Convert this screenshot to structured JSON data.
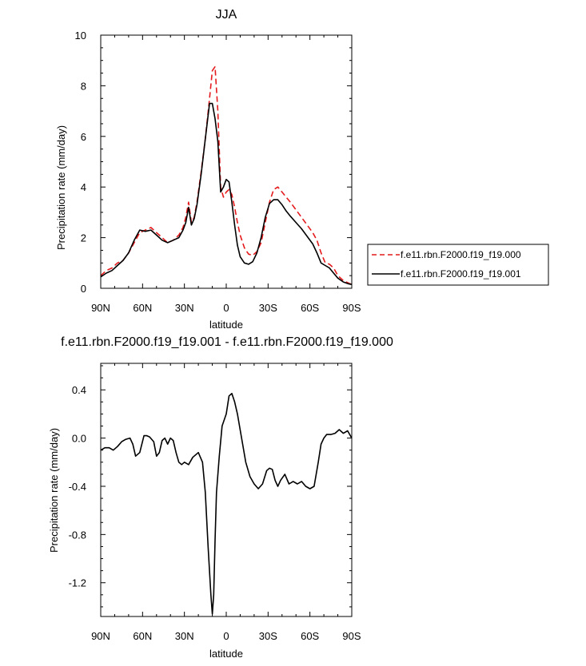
{
  "chart_data": [
    {
      "type": "line",
      "title": "JJA",
      "xlabel": "latitude",
      "ylabel": "Precipitation rate (mm/day)",
      "xlim": [
        90,
        -90
      ],
      "ylim": [
        0,
        10
      ],
      "xticks": [
        90,
        60,
        30,
        0,
        -30,
        -60,
        -90
      ],
      "xtick_labels": [
        "90N",
        "60N",
        "30N",
        "0",
        "30S",
        "60S",
        "90S"
      ],
      "yticks": [
        0,
        2,
        4,
        6,
        8,
        10
      ],
      "ytick_labels": [
        "0",
        "2",
        "4",
        "6",
        "8",
        "10"
      ],
      "legend_position": "right",
      "series": [
        {
          "name": "f.e11.rbn.F2000.f19_f19.000",
          "color": "#e41a1c",
          "style": "dashed",
          "x": [
            90,
            86,
            82,
            78,
            74,
            70,
            66,
            62,
            58,
            54,
            50,
            46,
            42,
            38,
            34,
            31,
            29,
            27,
            25,
            23,
            21,
            18,
            15,
            12,
            10,
            8,
            6,
            4,
            2,
            0,
            -2,
            -4,
            -6,
            -8,
            -10,
            -13,
            -16,
            -19,
            -22,
            -25,
            -28,
            -31,
            -34,
            -37,
            -40,
            -43,
            -46,
            -50,
            -54,
            -58,
            -62,
            -65,
            -68,
            -71,
            -74,
            -77,
            -80,
            -84,
            -88,
            -90
          ],
          "y": [
            0.5,
            0.7,
            0.8,
            1.0,
            1.1,
            1.4,
            1.8,
            2.2,
            2.3,
            2.4,
            2.2,
            2.0,
            1.8,
            1.9,
            2.1,
            2.4,
            2.8,
            3.4,
            2.6,
            2.8,
            3.4,
            4.6,
            5.9,
            7.5,
            8.6,
            8.75,
            7.0,
            4.0,
            3.6,
            3.8,
            3.9,
            3.7,
            3.2,
            2.6,
            2.1,
            1.6,
            1.35,
            1.3,
            1.45,
            1.8,
            2.6,
            3.4,
            3.9,
            4.0,
            3.8,
            3.6,
            3.4,
            3.1,
            2.8,
            2.5,
            2.2,
            1.9,
            1.4,
            1.0,
            0.95,
            0.8,
            0.5,
            0.3,
            0.2,
            0.15
          ]
        },
        {
          "name": "f.e11.rbn.F2000.f19_f19.001",
          "color": "#000000",
          "style": "solid",
          "x": [
            90,
            86,
            82,
            78,
            74,
            70,
            66,
            62,
            58,
            54,
            50,
            46,
            42,
            38,
            34,
            31,
            29,
            27,
            25,
            23,
            21,
            18,
            15,
            12,
            10,
            8,
            6,
            4,
            2,
            0,
            -2,
            -4,
            -6,
            -8,
            -10,
            -13,
            -16,
            -19,
            -22,
            -25,
            -28,
            -31,
            -34,
            -37,
            -40,
            -43,
            -46,
            -50,
            -54,
            -58,
            -62,
            -65,
            -68,
            -71,
            -74,
            -77,
            -80,
            -84,
            -88,
            -90
          ],
          "y": [
            0.45,
            0.6,
            0.7,
            0.9,
            1.1,
            1.4,
            1.9,
            2.3,
            2.25,
            2.3,
            2.1,
            1.9,
            1.8,
            1.9,
            2.0,
            2.3,
            2.6,
            3.2,
            2.5,
            2.75,
            3.3,
            4.5,
            5.9,
            7.3,
            7.3,
            6.7,
            5.8,
            3.8,
            4.0,
            4.3,
            4.2,
            3.4,
            2.5,
            1.7,
            1.25,
            1.0,
            0.95,
            1.05,
            1.4,
            2.0,
            2.8,
            3.35,
            3.5,
            3.5,
            3.3,
            3.05,
            2.85,
            2.6,
            2.35,
            2.05,
            1.75,
            1.4,
            1.0,
            0.9,
            0.8,
            0.6,
            0.4,
            0.25,
            0.17,
            0.15
          ]
        }
      ]
    },
    {
      "type": "line",
      "title": "f.e11.rbn.F2000.f19_f19.001 - f.e11.rbn.F2000.f19_f19.000",
      "xlabel": "latitude",
      "ylabel": "Precipitation rate (mm/day)",
      "xlim": [
        90,
        -90
      ],
      "ylim": [
        -1.48,
        0.62
      ],
      "xticks": [
        90,
        60,
        30,
        0,
        -30,
        -60,
        -90
      ],
      "xtick_labels": [
        "90N",
        "60N",
        "30N",
        "0",
        "30S",
        "60S",
        "90S"
      ],
      "yticks": [
        0.4,
        0.0,
        -0.4,
        -0.8,
        -1.2
      ],
      "ytick_labels": [
        "0.4",
        "0.0",
        "-0.4",
        "-0.8",
        "-1.2"
      ],
      "series": [
        {
          "color": "#000000",
          "style": "solid",
          "x": [
            90,
            87,
            84,
            81,
            78,
            75,
            72,
            69,
            67,
            65,
            62,
            59,
            57,
            55,
            52,
            50,
            48,
            46,
            44,
            42,
            40,
            38,
            36,
            34,
            32,
            30,
            27,
            24,
            20,
            17,
            15,
            13,
            11,
            10,
            9,
            8,
            7,
            5,
            3,
            0,
            -2,
            -4,
            -6,
            -8,
            -11,
            -14,
            -17,
            -20,
            -23,
            -26,
            -29,
            -31,
            -33,
            -35,
            -37,
            -39,
            -42,
            -45,
            -48,
            -51,
            -54,
            -57,
            -60,
            -63,
            -66,
            -68,
            -70,
            -72,
            -75,
            -78,
            -81,
            -84,
            -87,
            -90
          ],
          "y": [
            -0.1,
            -0.08,
            -0.08,
            -0.1,
            -0.07,
            -0.03,
            -0.01,
            0.0,
            -0.05,
            -0.15,
            -0.12,
            0.02,
            0.02,
            0.01,
            -0.03,
            -0.15,
            -0.12,
            -0.02,
            0.0,
            -0.05,
            0.0,
            -0.02,
            -0.12,
            -0.2,
            -0.22,
            -0.2,
            -0.22,
            -0.16,
            -0.12,
            -0.2,
            -0.45,
            -0.9,
            -1.3,
            -1.46,
            -1.3,
            -0.85,
            -0.45,
            -0.15,
            0.1,
            0.2,
            0.35,
            0.37,
            0.3,
            0.2,
            0.0,
            -0.2,
            -0.32,
            -0.38,
            -0.42,
            -0.38,
            -0.27,
            -0.25,
            -0.26,
            -0.35,
            -0.4,
            -0.35,
            -0.3,
            -0.38,
            -0.36,
            -0.38,
            -0.36,
            -0.4,
            -0.42,
            -0.4,
            -0.2,
            -0.05,
            0.0,
            0.03,
            0.03,
            0.04,
            0.07,
            0.04,
            0.06,
            0.0
          ]
        }
      ]
    }
  ]
}
